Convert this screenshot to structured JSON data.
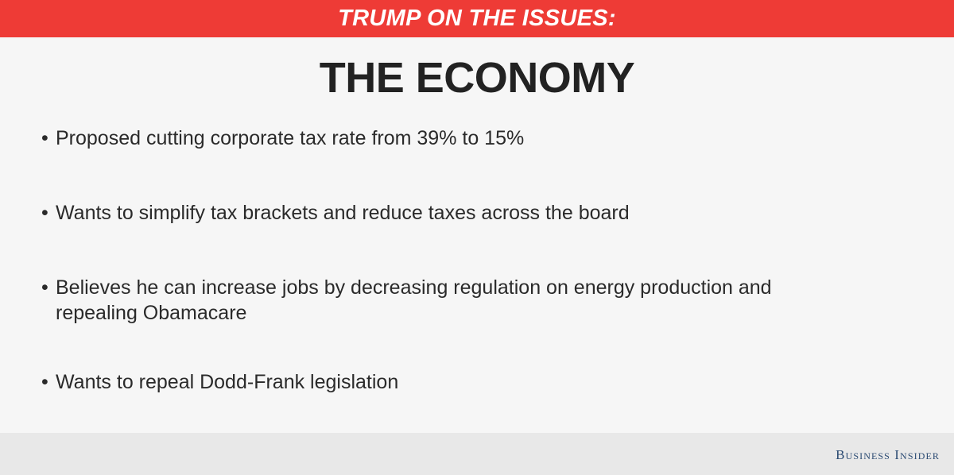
{
  "banner": {
    "text": "TRUMP ON THE ISSUES:",
    "color": "#ee3b36"
  },
  "title": "THE ECONOMY",
  "bullets": [
    "Proposed cutting corporate tax rate from 39% to 15%",
    "Wants to simplify tax brackets and reduce taxes across the board",
    "Believes he can increase jobs by decreasing regulation on energy production and repealing Obamacare",
    "Wants to repeal Dodd-Frank legislation"
  ],
  "footer": {
    "logo": "Business Insider"
  },
  "colors": {
    "background": "#f6f6f6",
    "text": "#2a2a2a",
    "footer": "#e8e8e8",
    "logo": "#2a4a72"
  }
}
